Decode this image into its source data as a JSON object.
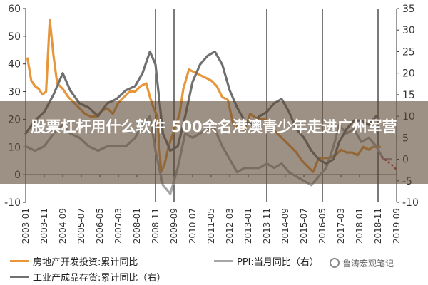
{
  "banner": {
    "title": "股票杠杆用什么软件 500余名港澳青少年走进广州军营"
  },
  "watermark": {
    "text": "鲁涛宏观笔记"
  },
  "chart_data": {
    "type": "line",
    "title": "",
    "x_ticks": [
      "2003-01",
      "2003-11",
      "2004-09",
      "2005-07",
      "2006-05",
      "2007-03",
      "2008-01",
      "2008-11",
      "2009-09",
      "2010-07",
      "2011-05",
      "2012-03",
      "2013-01",
      "2013-11",
      "2014-09",
      "2015-07",
      "2016-05",
      "2017-03",
      "2018-01",
      "2018-11",
      "2019-09"
    ],
    "y_left": {
      "ticks": [
        -10,
        0,
        10,
        20,
        30,
        40,
        50,
        60
      ],
      "ylim": [
        -10,
        60
      ]
    },
    "y_right": {
      "ticks": [
        -10,
        -5,
        0,
        5,
        10,
        15,
        20,
        25,
        30,
        35
      ],
      "ylim": [
        -10,
        35
      ]
    },
    "legend_position": "bottom",
    "series": [
      {
        "name": "房地产开发投资:累计同比",
        "axis": "left",
        "color": "#e8963c",
        "points": [
          [
            "2003-02",
            42
          ],
          [
            "2003-04",
            34
          ],
          [
            "2003-06",
            32
          ],
          [
            "2003-08",
            31
          ],
          [
            "2003-10",
            29
          ],
          [
            "2003-12",
            30
          ],
          [
            "2004-02",
            56
          ],
          [
            "2004-04",
            43
          ],
          [
            "2004-06",
            33
          ],
          [
            "2004-09",
            31
          ],
          [
            "2004-12",
            28
          ],
          [
            "2005-03",
            26
          ],
          [
            "2005-06",
            24
          ],
          [
            "2005-09",
            22
          ],
          [
            "2005-12",
            21
          ],
          [
            "2006-03",
            21
          ],
          [
            "2006-06",
            23
          ],
          [
            "2006-09",
            24
          ],
          [
            "2006-12",
            22
          ],
          [
            "2007-03",
            26
          ],
          [
            "2007-06",
            28
          ],
          [
            "2007-09",
            30
          ],
          [
            "2007-12",
            30
          ],
          [
            "2008-03",
            32
          ],
          [
            "2008-06",
            33
          ],
          [
            "2008-08",
            28
          ],
          [
            "2008-10",
            24
          ],
          [
            "2008-12",
            21
          ],
          [
            "2009-02",
            1
          ],
          [
            "2009-04",
            4
          ],
          [
            "2009-06",
            10
          ],
          [
            "2009-08",
            14
          ],
          [
            "2009-10",
            18
          ],
          [
            "2009-12",
            22
          ],
          [
            "2010-02",
            31
          ],
          [
            "2010-05",
            38
          ],
          [
            "2010-08",
            37
          ],
          [
            "2010-11",
            36
          ],
          [
            "2011-02",
            35
          ],
          [
            "2011-05",
            34
          ],
          [
            "2011-08",
            32
          ],
          [
            "2011-11",
            28
          ],
          [
            "2012-02",
            27
          ],
          [
            "2012-05",
            18
          ],
          [
            "2012-08",
            17
          ],
          [
            "2012-11",
            16
          ],
          [
            "2013-02",
            22
          ],
          [
            "2013-04",
            21
          ],
          [
            "2013-07",
            20
          ],
          [
            "2013-10",
            20
          ],
          [
            "2013-12",
            19
          ],
          [
            "2014-03",
            16
          ],
          [
            "2014-06",
            14
          ],
          [
            "2014-09",
            12
          ],
          [
            "2014-12",
            10
          ],
          [
            "2015-03",
            8
          ],
          [
            "2015-06",
            5
          ],
          [
            "2015-09",
            3
          ],
          [
            "2015-12",
            1
          ],
          [
            "2016-03",
            6
          ],
          [
            "2016-06",
            6
          ],
          [
            "2016-09",
            6
          ],
          [
            "2016-12",
            7
          ],
          [
            "2017-03",
            9
          ],
          [
            "2017-06",
            8
          ],
          [
            "2017-09",
            8
          ],
          [
            "2017-12",
            7
          ],
          [
            "2018-03",
            10
          ],
          [
            "2018-06",
            9
          ],
          [
            "2018-08",
            10
          ],
          [
            "2018-10",
            10
          ],
          [
            "2018-12",
            10
          ]
        ]
      },
      {
        "name": "PPI:当月同比（右）",
        "axis": "right",
        "color": "#a6a6a6",
        "points": [
          [
            "2003-01",
            3
          ],
          [
            "2003-06",
            2
          ],
          [
            "2003-11",
            3
          ],
          [
            "2004-04",
            6
          ],
          [
            "2004-09",
            8
          ],
          [
            "2005-01",
            6
          ],
          [
            "2005-06",
            5
          ],
          [
            "2005-11",
            3
          ],
          [
            "2006-04",
            2
          ],
          [
            "2006-09",
            3
          ],
          [
            "2007-02",
            3
          ],
          [
            "2007-07",
            3
          ],
          [
            "2007-12",
            5
          ],
          [
            "2008-04",
            8
          ],
          [
            "2008-08",
            10
          ],
          [
            "2008-11",
            2
          ],
          [
            "2009-03",
            -6
          ],
          [
            "2009-07",
            -8
          ],
          [
            "2009-11",
            -2
          ],
          [
            "2010-03",
            6
          ],
          [
            "2010-07",
            5
          ],
          [
            "2010-11",
            6
          ],
          [
            "2011-03",
            7
          ],
          [
            "2011-07",
            7
          ],
          [
            "2011-11",
            3
          ],
          [
            "2012-03",
            0
          ],
          [
            "2012-07",
            -3
          ],
          [
            "2012-11",
            -2
          ],
          [
            "2013-03",
            -2
          ],
          [
            "2013-07",
            -2
          ],
          [
            "2013-11",
            -1
          ],
          [
            "2014-03",
            -2
          ],
          [
            "2014-07",
            -1
          ],
          [
            "2014-11",
            -3
          ],
          [
            "2015-03",
            -4
          ],
          [
            "2015-07",
            -5
          ],
          [
            "2015-11",
            -6
          ],
          [
            "2016-03",
            -4
          ],
          [
            "2016-07",
            -2
          ],
          [
            "2016-11",
            3
          ],
          [
            "2017-02",
            8
          ],
          [
            "2017-06",
            6
          ],
          [
            "2017-10",
            7
          ],
          [
            "2018-02",
            4
          ],
          [
            "2018-06",
            5
          ],
          [
            "2018-10",
            3
          ],
          [
            "2019-02",
            0
          ],
          [
            "2019-06",
            0
          ]
        ]
      },
      {
        "name": "工业产成品存货:累计同比（右）",
        "axis": "right",
        "color": "#707070",
        "points": [
          [
            "2003-01",
            6
          ],
          [
            "2003-06",
            9
          ],
          [
            "2003-11",
            11
          ],
          [
            "2004-04",
            15
          ],
          [
            "2004-09",
            20
          ],
          [
            "2005-01",
            16
          ],
          [
            "2005-06",
            13
          ],
          [
            "2005-11",
            12
          ],
          [
            "2006-04",
            10
          ],
          [
            "2006-09",
            13
          ],
          [
            "2007-02",
            14
          ],
          [
            "2007-07",
            16
          ],
          [
            "2007-12",
            17
          ],
          [
            "2008-04",
            20
          ],
          [
            "2008-08",
            25
          ],
          [
            "2008-11",
            22
          ],
          [
            "2009-03",
            6
          ],
          [
            "2009-07",
            2
          ],
          [
            "2009-11",
            3
          ],
          [
            "2010-03",
            10
          ],
          [
            "2010-07",
            18
          ],
          [
            "2010-11",
            22
          ],
          [
            "2011-03",
            24
          ],
          [
            "2011-07",
            25
          ],
          [
            "2011-11",
            22
          ],
          [
            "2012-03",
            16
          ],
          [
            "2012-07",
            12
          ],
          [
            "2012-11",
            9
          ],
          [
            "2013-03",
            8
          ],
          [
            "2013-07",
            10
          ],
          [
            "2013-11",
            11
          ],
          [
            "2014-03",
            13
          ],
          [
            "2014-07",
            14
          ],
          [
            "2014-11",
            11
          ],
          [
            "2015-03",
            7
          ],
          [
            "2015-07",
            5
          ],
          [
            "2015-11",
            2
          ],
          [
            "2016-03",
            0
          ],
          [
            "2016-07",
            -1
          ],
          [
            "2016-11",
            0
          ],
          [
            "2017-02",
            4
          ],
          [
            "2017-06",
            7
          ],
          [
            "2017-10",
            9
          ],
          [
            "2018-02",
            9
          ],
          [
            "2018-06",
            8
          ],
          [
            "2018-10",
            10
          ],
          [
            "2018-12",
            9
          ]
        ]
      },
      {
        "name": "",
        "axis": "right",
        "color": "#c0392b",
        "style": "dotted",
        "points": [
          [
            "2019-01",
            0.5
          ],
          [
            "2019-04",
            -0.5
          ],
          [
            "2019-07",
            -1.5
          ],
          [
            "2019-09",
            -2.5
          ]
        ]
      }
    ]
  },
  "legend": {
    "items": [
      {
        "label": "房地产开发投资:累计同比",
        "color": "#e8963c"
      },
      {
        "label": "PPI:当月同比（右）",
        "color": "#a6a6a6"
      },
      {
        "label": "工业产成品存货:累计同比（右）",
        "color": "#707070"
      }
    ]
  }
}
